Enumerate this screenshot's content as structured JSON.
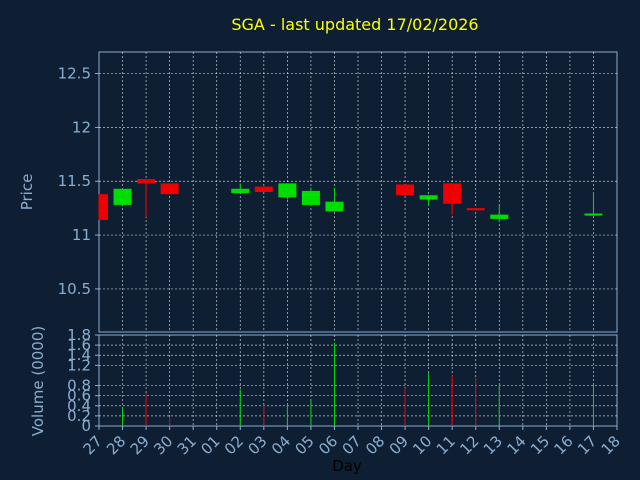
{
  "chart_data": [
    {
      "type": "candlestick",
      "title": "SGA - last updated 17/02/2026",
      "xlabel": "Day",
      "ylabel": "Price",
      "ylim": [
        10.1,
        12.7
      ],
      "yticks": [
        "10.5",
        "11",
        "11.5",
        "12",
        "12.5"
      ],
      "ytick_values": [
        10.5,
        11,
        11.5,
        12,
        12.5
      ],
      "grid": true,
      "categories": [
        "27",
        "28",
        "29",
        "30",
        "31",
        "01",
        "02",
        "03",
        "04",
        "05",
        "06",
        "07",
        "08",
        "09",
        "10",
        "11",
        "12",
        "13",
        "14",
        "15",
        "16",
        "17",
        "18"
      ],
      "candles": [
        {
          "day": "27",
          "open": 11.38,
          "high": 11.38,
          "low": 11.14,
          "close": 11.14
        },
        {
          "day": "28",
          "open": 11.28,
          "high": 11.43,
          "low": 11.28,
          "close": 11.43
        },
        {
          "day": "29",
          "open": 11.52,
          "high": 11.52,
          "low": 11.17,
          "close": 11.48
        },
        {
          "day": "30",
          "open": 11.48,
          "high": 11.48,
          "low": 11.38,
          "close": 11.38
        },
        {
          "day": "02",
          "open": 11.39,
          "high": 11.48,
          "low": 11.39,
          "close": 11.43
        },
        {
          "day": "03",
          "open": 11.45,
          "high": 11.45,
          "low": 11.4,
          "close": 11.4
        },
        {
          "day": "04",
          "open": 11.35,
          "high": 11.48,
          "low": 11.33,
          "close": 11.48
        },
        {
          "day": "05",
          "open": 11.28,
          "high": 11.44,
          "low": 11.28,
          "close": 11.41
        },
        {
          "day": "06",
          "open": 11.22,
          "high": 11.44,
          "low": 11.22,
          "close": 11.31
        },
        {
          "day": "09",
          "open": 11.47,
          "high": 11.47,
          "low": 11.37,
          "close": 11.37
        },
        {
          "day": "10",
          "open": 11.33,
          "high": 11.37,
          "low": 11.28,
          "close": 11.37
        },
        {
          "day": "11",
          "open": 11.48,
          "high": 11.48,
          "low": 11.19,
          "close": 11.29
        },
        {
          "day": "12",
          "open": 11.25,
          "high": 11.25,
          "low": 11.23,
          "close": 11.23
        },
        {
          "day": "13",
          "open": 11.15,
          "high": 11.27,
          "low": 11.12,
          "close": 11.19
        },
        {
          "day": "17",
          "open": 11.19,
          "high": 11.4,
          "low": 11.19,
          "close": 11.2
        }
      ],
      "colors": {
        "up": "#00dd00",
        "down": "#ee0000"
      }
    },
    {
      "type": "bar",
      "xlabel": "Day",
      "ylabel": "Volume (0000)",
      "ylim": [
        0,
        1.8
      ],
      "yticks": [
        "0",
        "0.2",
        "0.4",
        "0.6",
        "0.8",
        "1.2",
        "1.4",
        "1.6",
        "1.8"
      ],
      "ytick_values": [
        0,
        0.2,
        0.4,
        0.6,
        0.8,
        1.2,
        1.4,
        1.6,
        1.8
      ],
      "grid": true,
      "bars": [
        {
          "day": "28",
          "value": 0.35,
          "color": "#00dd00"
        },
        {
          "day": "29",
          "value": 0.65,
          "color": "#ee0000"
        },
        {
          "day": "30",
          "value": 0.18,
          "color": "#ee0000"
        },
        {
          "day": "02",
          "value": 0.72,
          "color": "#00dd00"
        },
        {
          "day": "03",
          "value": 0.42,
          "color": "#ee0000"
        },
        {
          "day": "04",
          "value": 0.42,
          "color": "#00dd00"
        },
        {
          "day": "05",
          "value": 0.5,
          "color": "#00dd00"
        },
        {
          "day": "06",
          "value": 1.65,
          "color": "#00dd00"
        },
        {
          "day": "09",
          "value": 0.75,
          "color": "#ee0000"
        },
        {
          "day": "10",
          "value": 1.05,
          "color": "#00dd00"
        },
        {
          "day": "11",
          "value": 1.0,
          "color": "#ee0000"
        },
        {
          "day": "12",
          "value": 0.95,
          "color": "#ee0000"
        },
        {
          "day": "13",
          "value": 0.8,
          "color": "#00dd00"
        },
        {
          "day": "17",
          "value": 0.82,
          "color": "#00dd00"
        }
      ]
    }
  ],
  "colors": {
    "background": "#0f1f33",
    "title": "#ffff00",
    "axis_label": "#8aaed0",
    "axis_line": "#8aaed0",
    "grid": "#ffffff",
    "xlabel": "#000000"
  }
}
